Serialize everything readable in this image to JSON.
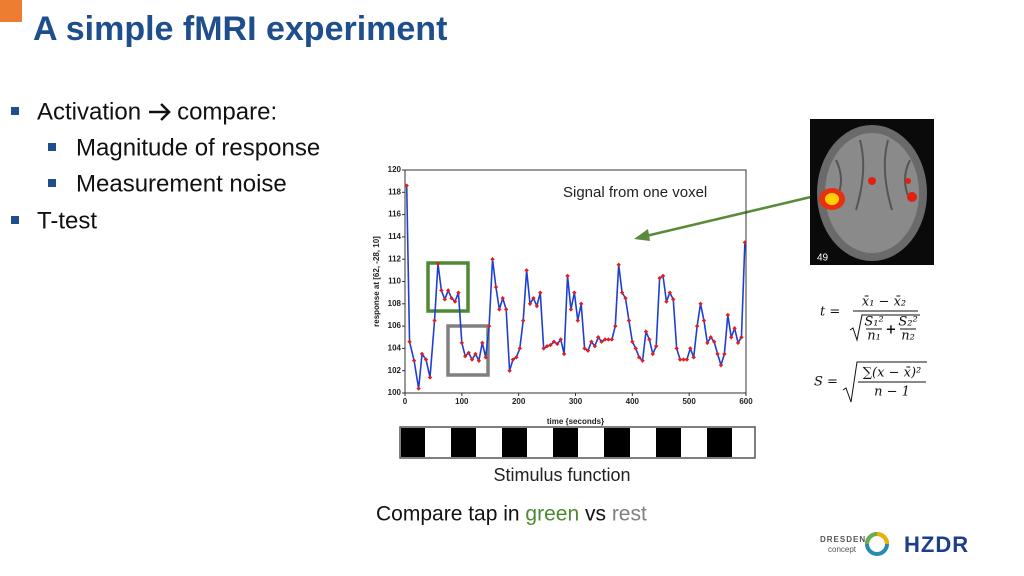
{
  "title": "A simple fMRI experiment",
  "bullets": [
    {
      "level": 0,
      "parts": [
        "Activation",
        "compare:"
      ]
    },
    {
      "level": 1,
      "parts": [
        "Magnitude of response"
      ]
    },
    {
      "level": 1,
      "parts": [
        "Measurement noise"
      ]
    },
    {
      "level": 0,
      "parts": [
        "T-test"
      ]
    }
  ],
  "chart_data": {
    "type": "line",
    "xlabel": "time {seconds}",
    "ylabel": "response at [62, -28, 10]",
    "xlim": [
      0,
      600
    ],
    "xticks": [
      0,
      100,
      200,
      300,
      400,
      500,
      600
    ],
    "ylim": [
      100,
      120
    ],
    "yticks": [
      100,
      102,
      104,
      106,
      108,
      110,
      112,
      114,
      116,
      118,
      120
    ],
    "grid": false,
    "series": [
      {
        "color": "#1f3fd0",
        "marker_color": "#e02020",
        "x": [
          3,
          8,
          16,
          24,
          30,
          37,
          44,
          52,
          58,
          64,
          70,
          76,
          82,
          88,
          94,
          100,
          106,
          112,
          118,
          124,
          130,
          136,
          142,
          148,
          154,
          160,
          166,
          172,
          178,
          184,
          190,
          196,
          202,
          208,
          214,
          220,
          226,
          232,
          238,
          244,
          250,
          256,
          262,
          268,
          274,
          280,
          286,
          292,
          298,
          304,
          310,
          316,
          322,
          328,
          334,
          340,
          346,
          352,
          358,
          364,
          370,
          376,
          382,
          388,
          394,
          400,
          406,
          412,
          418,
          424,
          430,
          436,
          442,
          448,
          454,
          460,
          466,
          472,
          478,
          484,
          490,
          496,
          502,
          508,
          514,
          520,
          526,
          532,
          538,
          544,
          550,
          556,
          562,
          568,
          574,
          580,
          586,
          592,
          598
        ],
        "values": [
          118.6,
          104.6,
          102.9,
          100.4,
          103.5,
          103.0,
          101.4,
          106.5,
          111.6,
          109.2,
          108.4,
          109.2,
          108.5,
          108.2,
          109.0,
          104.5,
          103.3,
          103.6,
          103.0,
          103.5,
          102.9,
          104.5,
          103.2,
          106.0,
          112.0,
          109.5,
          107.5,
          108.5,
          107.5,
          102.0,
          103.0,
          103.2,
          104.0,
          106.5,
          111.0,
          108.0,
          108.5,
          107.8,
          109.0,
          104.0,
          104.2,
          104.3,
          104.6,
          104.4,
          104.8,
          103.5,
          110.5,
          107.5,
          109.0,
          106.5,
          108.0,
          104.0,
          103.8,
          104.6,
          104.2,
          105.0,
          104.6,
          104.8,
          104.8,
          104.8,
          106.0,
          111.5,
          109.0,
          108.5,
          106.5,
          104.6,
          104.0,
          103.2,
          102.9,
          105.5,
          104.8,
          103.5,
          104.2,
          110.3,
          110.5,
          108.2,
          109.0,
          108.4,
          104.0,
          103.0,
          103.0,
          103.0,
          104.0,
          103.2,
          106.0,
          108.0,
          106.5,
          104.5,
          105.0,
          104.6,
          103.5,
          102.5,
          103.5,
          107.0,
          105.0,
          105.8,
          104.5,
          105.0,
          113.5
        ]
      }
    ]
  },
  "annotation": "Signal from one voxel",
  "stimulus_label": "Stimulus function",
  "caption": [
    "Compare tap in ",
    "green",
    " vs ",
    "rest"
  ],
  "image_label": "49",
  "formulas": {
    "t": {
      "lhs": "t =",
      "numerator": "x̄₁ − x̄₂",
      "s1": "S₁²",
      "n1": "n₁",
      "plus": "+",
      "s2": "S₂²",
      "n2": "n₂"
    },
    "s": {
      "lhs": "S =",
      "numerator": "∑(x − x̄)²",
      "denominator": "n − 1"
    }
  },
  "logos": {
    "dresden": "DRESDEN",
    "concept": "concept",
    "hzdr": "HZDR"
  }
}
